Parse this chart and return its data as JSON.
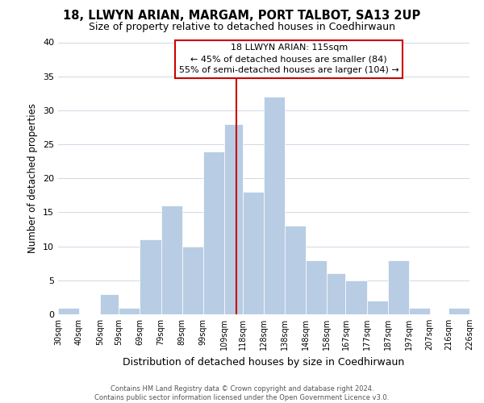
{
  "title": "18, LLWYN ARIAN, MARGAM, PORT TALBOT, SA13 2UP",
  "subtitle": "Size of property relative to detached houses in Coedhirwaun",
  "xlabel": "Distribution of detached houses by size in Coedhirwaun",
  "ylabel": "Number of detached properties",
  "footer_line1": "Contains HM Land Registry data © Crown copyright and database right 2024.",
  "footer_line2": "Contains public sector information licensed under the Open Government Licence v3.0.",
  "bin_labels": [
    "30sqm",
    "40sqm",
    "50sqm",
    "59sqm",
    "69sqm",
    "79sqm",
    "89sqm",
    "99sqm",
    "109sqm",
    "118sqm",
    "128sqm",
    "138sqm",
    "148sqm",
    "158sqm",
    "167sqm",
    "177sqm",
    "187sqm",
    "197sqm",
    "207sqm",
    "216sqm",
    "226sqm"
  ],
  "bar_values": [
    1,
    0,
    3,
    1,
    11,
    16,
    10,
    24,
    28,
    18,
    32,
    13,
    8,
    6,
    5,
    2,
    8,
    1,
    0,
    1,
    0
  ],
  "bar_color": "#b8cce4",
  "bar_edge_color": "#ffffff",
  "vline_x": 115,
  "ylim": [
    0,
    40
  ],
  "yticks": [
    0,
    5,
    10,
    15,
    20,
    25,
    30,
    35,
    40
  ],
  "annotation_title": "18 LLWYN ARIAN: 115sqm",
  "annotation_line1": "← 45% of detached houses are smaller (84)",
  "annotation_line2": "55% of semi-detached houses are larger (104) →",
  "grid_color": "#d0d8e4",
  "annotation_box_facecolor": "#ffffff",
  "annotation_box_edgecolor": "#cc0000",
  "vline_color": "#cc0000",
  "bin_edges": [
    30,
    40,
    50,
    59,
    69,
    79,
    89,
    99,
    109,
    118,
    128,
    138,
    148,
    158,
    167,
    177,
    187,
    197,
    207,
    216,
    226
  ]
}
